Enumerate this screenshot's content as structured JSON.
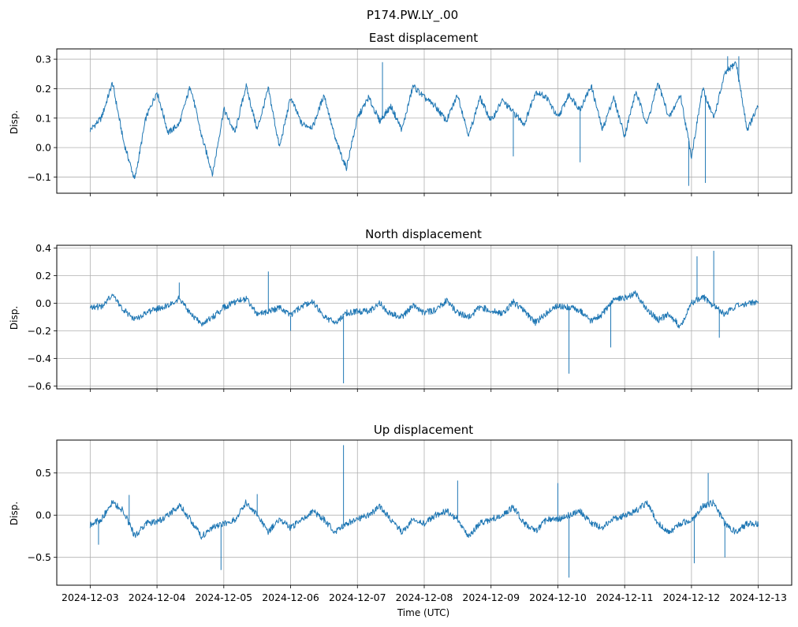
{
  "figure": {
    "suptitle": "P174.PW.LY_.00",
    "xlabel": "Time (UTC)"
  },
  "chart_data": [
    {
      "type": "line",
      "title": "East displacement",
      "xlabel": "",
      "ylabel": "Disp.",
      "color": "#1f77b4",
      "grid": true,
      "xlim": [
        "2024-12-02T12:00",
        "2024-12-13T12:00"
      ],
      "ylim": [
        -0.155,
        0.335
      ],
      "yticks": [
        -0.1,
        0.0,
        0.1,
        0.2,
        0.3
      ],
      "ytick_labels": [
        "−0.1",
        "0.0",
        "0.1",
        "0.2",
        "0.3"
      ],
      "x": [
        "2024-12-03T00:00",
        "2024-12-03T04:00",
        "2024-12-03T08:00",
        "2024-12-03T12:00",
        "2024-12-03T16:00",
        "2024-12-03T20:00",
        "2024-12-04T00:00",
        "2024-12-04T04:00",
        "2024-12-04T08:00",
        "2024-12-04T12:00",
        "2024-12-04T16:00",
        "2024-12-04T20:00",
        "2024-12-05T00:00",
        "2024-12-05T04:00",
        "2024-12-05T08:00",
        "2024-12-05T12:00",
        "2024-12-05T16:00",
        "2024-12-05T20:00",
        "2024-12-06T00:00",
        "2024-12-06T04:00",
        "2024-12-06T08:00",
        "2024-12-06T12:00",
        "2024-12-06T16:00",
        "2024-12-06T20:00",
        "2024-12-07T00:00",
        "2024-12-07T04:00",
        "2024-12-07T08:00",
        "2024-12-07T12:00",
        "2024-12-07T16:00",
        "2024-12-07T20:00",
        "2024-12-08T00:00",
        "2024-12-08T04:00",
        "2024-12-08T08:00",
        "2024-12-08T12:00",
        "2024-12-08T16:00",
        "2024-12-08T20:00",
        "2024-12-09T00:00",
        "2024-12-09T04:00",
        "2024-12-09T08:00",
        "2024-12-09T12:00",
        "2024-12-09T16:00",
        "2024-12-09T20:00",
        "2024-12-10T00:00",
        "2024-12-10T04:00",
        "2024-12-10T08:00",
        "2024-12-10T12:00",
        "2024-12-10T16:00",
        "2024-12-10T20:00",
        "2024-12-11T00:00",
        "2024-12-11T04:00",
        "2024-12-11T08:00",
        "2024-12-11T12:00",
        "2024-12-11T16:00",
        "2024-12-11T20:00",
        "2024-12-12T00:00",
        "2024-12-12T04:00",
        "2024-12-12T08:00",
        "2024-12-12T12:00",
        "2024-12-12T16:00",
        "2024-12-12T20:00",
        "2024-12-13T00:00"
      ],
      "values": [
        0.06,
        0.1,
        0.22,
        0.02,
        -0.11,
        0.1,
        0.19,
        0.05,
        0.08,
        0.21,
        0.04,
        -0.09,
        0.13,
        0.05,
        0.21,
        0.06,
        0.2,
        0.0,
        0.17,
        0.08,
        0.07,
        0.18,
        0.03,
        -0.07,
        0.1,
        0.17,
        0.09,
        0.14,
        0.06,
        0.21,
        0.17,
        0.14,
        0.09,
        0.18,
        0.04,
        0.17,
        0.09,
        0.16,
        0.12,
        0.08,
        0.19,
        0.17,
        0.1,
        0.18,
        0.13,
        0.21,
        0.06,
        0.17,
        0.04,
        0.19,
        0.08,
        0.22,
        0.1,
        0.18,
        -0.03,
        0.2,
        0.1,
        0.25,
        0.29,
        0.06,
        0.14
      ],
      "spikes": [
        {
          "x": "2024-12-06T20:00",
          "y": -0.07
        },
        {
          "x": "2024-12-07T09:00",
          "y": 0.29
        },
        {
          "x": "2024-12-09T08:00",
          "y": -0.03
        },
        {
          "x": "2024-12-10T08:00",
          "y": -0.05
        },
        {
          "x": "2024-12-11T23:00",
          "y": -0.13
        },
        {
          "x": "2024-12-12T05:00",
          "y": -0.12
        },
        {
          "x": "2024-12-12T13:00",
          "y": 0.31
        },
        {
          "x": "2024-12-12T17:00",
          "y": 0.31
        }
      ]
    },
    {
      "type": "line",
      "title": "North displacement",
      "xlabel": "",
      "ylabel": "Disp.",
      "color": "#1f77b4",
      "grid": true,
      "xlim": [
        "2024-12-02T12:00",
        "2024-12-13T12:00"
      ],
      "ylim": [
        -0.62,
        0.42
      ],
      "yticks": [
        -0.6,
        -0.4,
        -0.2,
        0.0,
        0.2,
        0.4
      ],
      "ytick_labels": [
        "−0.6",
        "−0.4",
        "−0.2",
        "0.0",
        "0.2",
        "0.4"
      ],
      "x": [
        "2024-12-03T00:00",
        "2024-12-03T04:00",
        "2024-12-03T08:00",
        "2024-12-03T12:00",
        "2024-12-03T16:00",
        "2024-12-03T20:00",
        "2024-12-04T00:00",
        "2024-12-04T04:00",
        "2024-12-04T08:00",
        "2024-12-04T12:00",
        "2024-12-04T16:00",
        "2024-12-04T20:00",
        "2024-12-05T00:00",
        "2024-12-05T04:00",
        "2024-12-05T08:00",
        "2024-12-05T12:00",
        "2024-12-05T16:00",
        "2024-12-05T20:00",
        "2024-12-06T00:00",
        "2024-12-06T04:00",
        "2024-12-06T08:00",
        "2024-12-06T12:00",
        "2024-12-06T16:00",
        "2024-12-06T20:00",
        "2024-12-07T00:00",
        "2024-12-07T04:00",
        "2024-12-07T08:00",
        "2024-12-07T12:00",
        "2024-12-07T16:00",
        "2024-12-07T20:00",
        "2024-12-08T00:00",
        "2024-12-08T04:00",
        "2024-12-08T08:00",
        "2024-12-08T12:00",
        "2024-12-08T16:00",
        "2024-12-08T20:00",
        "2024-12-09T00:00",
        "2024-12-09T04:00",
        "2024-12-09T08:00",
        "2024-12-09T12:00",
        "2024-12-09T16:00",
        "2024-12-09T20:00",
        "2024-12-10T00:00",
        "2024-12-10T04:00",
        "2024-12-10T08:00",
        "2024-12-10T12:00",
        "2024-12-10T16:00",
        "2024-12-10T20:00",
        "2024-12-11T00:00",
        "2024-12-11T04:00",
        "2024-12-11T08:00",
        "2024-12-11T12:00",
        "2024-12-11T16:00",
        "2024-12-11T20:00",
        "2024-12-12T00:00",
        "2024-12-12T04:00",
        "2024-12-12T08:00",
        "2024-12-12T12:00",
        "2024-12-12T16:00",
        "2024-12-12T20:00",
        "2024-12-13T00:00"
      ],
      "values": [
        -0.02,
        -0.03,
        0.06,
        -0.05,
        -0.12,
        -0.07,
        -0.04,
        -0.02,
        0.04,
        -0.08,
        -0.15,
        -0.1,
        -0.03,
        0.01,
        0.03,
        -0.08,
        -0.06,
        -0.03,
        -0.09,
        -0.02,
        0.01,
        -0.1,
        -0.14,
        -0.07,
        -0.06,
        -0.06,
        0.0,
        -0.08,
        -0.1,
        -0.02,
        -0.07,
        -0.05,
        0.02,
        -0.07,
        -0.1,
        -0.03,
        -0.05,
        -0.08,
        0.01,
        -0.06,
        -0.14,
        -0.07,
        -0.02,
        -0.03,
        -0.05,
        -0.13,
        -0.08,
        0.03,
        0.04,
        0.07,
        -0.05,
        -0.12,
        -0.08,
        -0.17,
        0.0,
        0.05,
        -0.02,
        -0.08,
        -0.02,
        0.0,
        0.01
      ],
      "spikes": [
        {
          "x": "2024-12-04T08:00",
          "y": 0.15
        },
        {
          "x": "2024-12-05T16:00",
          "y": 0.23
        },
        {
          "x": "2024-12-06T00:00",
          "y": -0.2
        },
        {
          "x": "2024-12-06T19:00",
          "y": -0.58
        },
        {
          "x": "2024-12-10T04:00",
          "y": -0.51
        },
        {
          "x": "2024-12-10T19:00",
          "y": -0.32
        },
        {
          "x": "2024-12-12T02:00",
          "y": 0.34
        },
        {
          "x": "2024-12-12T08:00",
          "y": 0.38
        },
        {
          "x": "2024-12-12T10:00",
          "y": -0.25
        }
      ]
    },
    {
      "type": "line",
      "title": "Up displacement",
      "xlabel": "Time (UTC)",
      "ylabel": "Disp.",
      "color": "#1f77b4",
      "grid": true,
      "xlim": [
        "2024-12-02T12:00",
        "2024-12-13T12:00"
      ],
      "ylim": [
        -0.83,
        0.89
      ],
      "yticks": [
        -0.5,
        0.0,
        0.5
      ],
      "ytick_labels": [
        "−0.5",
        "0.0",
        "0.5"
      ],
      "xtick_labels": [
        "2024-12-03",
        "2024-12-04",
        "2024-12-05",
        "2024-12-06",
        "2024-12-07",
        "2024-12-08",
        "2024-12-09",
        "2024-12-10",
        "2024-12-11",
        "2024-12-12",
        "2024-12-13"
      ],
      "x": [
        "2024-12-03T00:00",
        "2024-12-03T04:00",
        "2024-12-03T08:00",
        "2024-12-03T12:00",
        "2024-12-03T16:00",
        "2024-12-03T20:00",
        "2024-12-04T00:00",
        "2024-12-04T04:00",
        "2024-12-04T08:00",
        "2024-12-04T12:00",
        "2024-12-04T16:00",
        "2024-12-04T20:00",
        "2024-12-05T00:00",
        "2024-12-05T04:00",
        "2024-12-05T08:00",
        "2024-12-05T12:00",
        "2024-12-05T16:00",
        "2024-12-05T20:00",
        "2024-12-06T00:00",
        "2024-12-06T04:00",
        "2024-12-06T08:00",
        "2024-12-06T12:00",
        "2024-12-06T16:00",
        "2024-12-06T20:00",
        "2024-12-07T00:00",
        "2024-12-07T04:00",
        "2024-12-07T08:00",
        "2024-12-07T12:00",
        "2024-12-07T16:00",
        "2024-12-07T20:00",
        "2024-12-08T00:00",
        "2024-12-08T04:00",
        "2024-12-08T08:00",
        "2024-12-08T12:00",
        "2024-12-08T16:00",
        "2024-12-08T20:00",
        "2024-12-09T00:00",
        "2024-12-09T04:00",
        "2024-12-09T08:00",
        "2024-12-09T12:00",
        "2024-12-09T16:00",
        "2024-12-09T20:00",
        "2024-12-10T00:00",
        "2024-12-10T04:00",
        "2024-12-10T08:00",
        "2024-12-10T12:00",
        "2024-12-10T16:00",
        "2024-12-10T20:00",
        "2024-12-11T00:00",
        "2024-12-11T04:00",
        "2024-12-11T08:00",
        "2024-12-11T12:00",
        "2024-12-11T16:00",
        "2024-12-11T20:00",
        "2024-12-12T00:00",
        "2024-12-12T04:00",
        "2024-12-12T08:00",
        "2024-12-12T12:00",
        "2024-12-12T16:00",
        "2024-12-12T20:00",
        "2024-12-13T00:00"
      ],
      "values": [
        -0.12,
        -0.05,
        0.15,
        0.05,
        -0.25,
        -0.1,
        -0.08,
        0.0,
        0.12,
        -0.05,
        -0.25,
        -0.15,
        -0.1,
        -0.05,
        0.15,
        0.0,
        -0.2,
        -0.05,
        -0.15,
        -0.05,
        0.05,
        -0.05,
        -0.2,
        -0.1,
        -0.05,
        0.0,
        0.1,
        -0.05,
        -0.2,
        -0.05,
        -0.1,
        0.0,
        0.05,
        -0.05,
        -0.25,
        -0.1,
        -0.05,
        0.0,
        0.1,
        -0.1,
        -0.2,
        -0.05,
        -0.05,
        0.0,
        0.05,
        -0.1,
        -0.15,
        -0.05,
        0.0,
        0.05,
        0.15,
        -0.1,
        -0.2,
        -0.1,
        -0.05,
        0.1,
        0.15,
        -0.1,
        -0.2,
        -0.1,
        -0.1
      ],
      "spikes": [
        {
          "x": "2024-12-03T03:00",
          "y": -0.35
        },
        {
          "x": "2024-12-03T14:00",
          "y": 0.24
        },
        {
          "x": "2024-12-04T23:00",
          "y": -0.65
        },
        {
          "x": "2024-12-05T12:00",
          "y": 0.25
        },
        {
          "x": "2024-12-06T19:00",
          "y": 0.83
        },
        {
          "x": "2024-12-08T12:00",
          "y": 0.41
        },
        {
          "x": "2024-12-10T00:00",
          "y": 0.38
        },
        {
          "x": "2024-12-10T04:00",
          "y": -0.74
        },
        {
          "x": "2024-12-12T01:00",
          "y": -0.57
        },
        {
          "x": "2024-12-12T06:00",
          "y": 0.5
        },
        {
          "x": "2024-12-12T12:00",
          "y": -0.5
        }
      ]
    }
  ]
}
